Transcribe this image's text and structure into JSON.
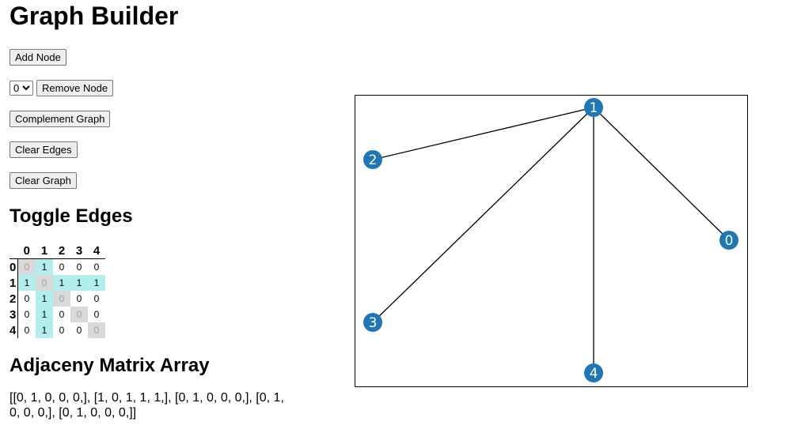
{
  "title": "Graph Builder",
  "buttons": {
    "add_node": "Add Node",
    "remove_node": "Remove Node",
    "complement": "Complement Graph",
    "clear_edges": "Clear Edges",
    "clear_graph": "Clear Graph"
  },
  "node_select": {
    "selected": "0",
    "options": [
      "0",
      "1",
      "2",
      "3",
      "4"
    ]
  },
  "toggle_edges": {
    "heading": "Toggle Edges",
    "nodes": [
      "0",
      "1",
      "2",
      "3",
      "4"
    ],
    "matrix": [
      [
        0,
        1,
        0,
        0,
        0
      ],
      [
        1,
        0,
        1,
        1,
        1
      ],
      [
        0,
        1,
        0,
        0,
        0
      ],
      [
        0,
        1,
        0,
        0,
        0
      ],
      [
        0,
        1,
        0,
        0,
        0
      ]
    ]
  },
  "adjacency_array": {
    "heading": "Adjaceny Matrix Array",
    "text": "[[0, 1, 0, 0, 0,], [1, 0, 1, 1, 1,], [0, 1, 0, 0, 0,], [0, 1, 0, 0, 0,], [0, 1, 0, 0, 0,]]"
  },
  "graph": {
    "node_color": "#1f77b4",
    "edge_color": "#000000",
    "nodes": [
      {
        "id": "0",
        "label": "0"
      },
      {
        "id": "1",
        "label": "1"
      },
      {
        "id": "2",
        "label": "2"
      },
      {
        "id": "3",
        "label": "3"
      },
      {
        "id": "4",
        "label": "4"
      }
    ],
    "edges": [
      [
        "1",
        "0"
      ],
      [
        "1",
        "2"
      ],
      [
        "1",
        "3"
      ],
      [
        "1",
        "4"
      ]
    ]
  }
}
